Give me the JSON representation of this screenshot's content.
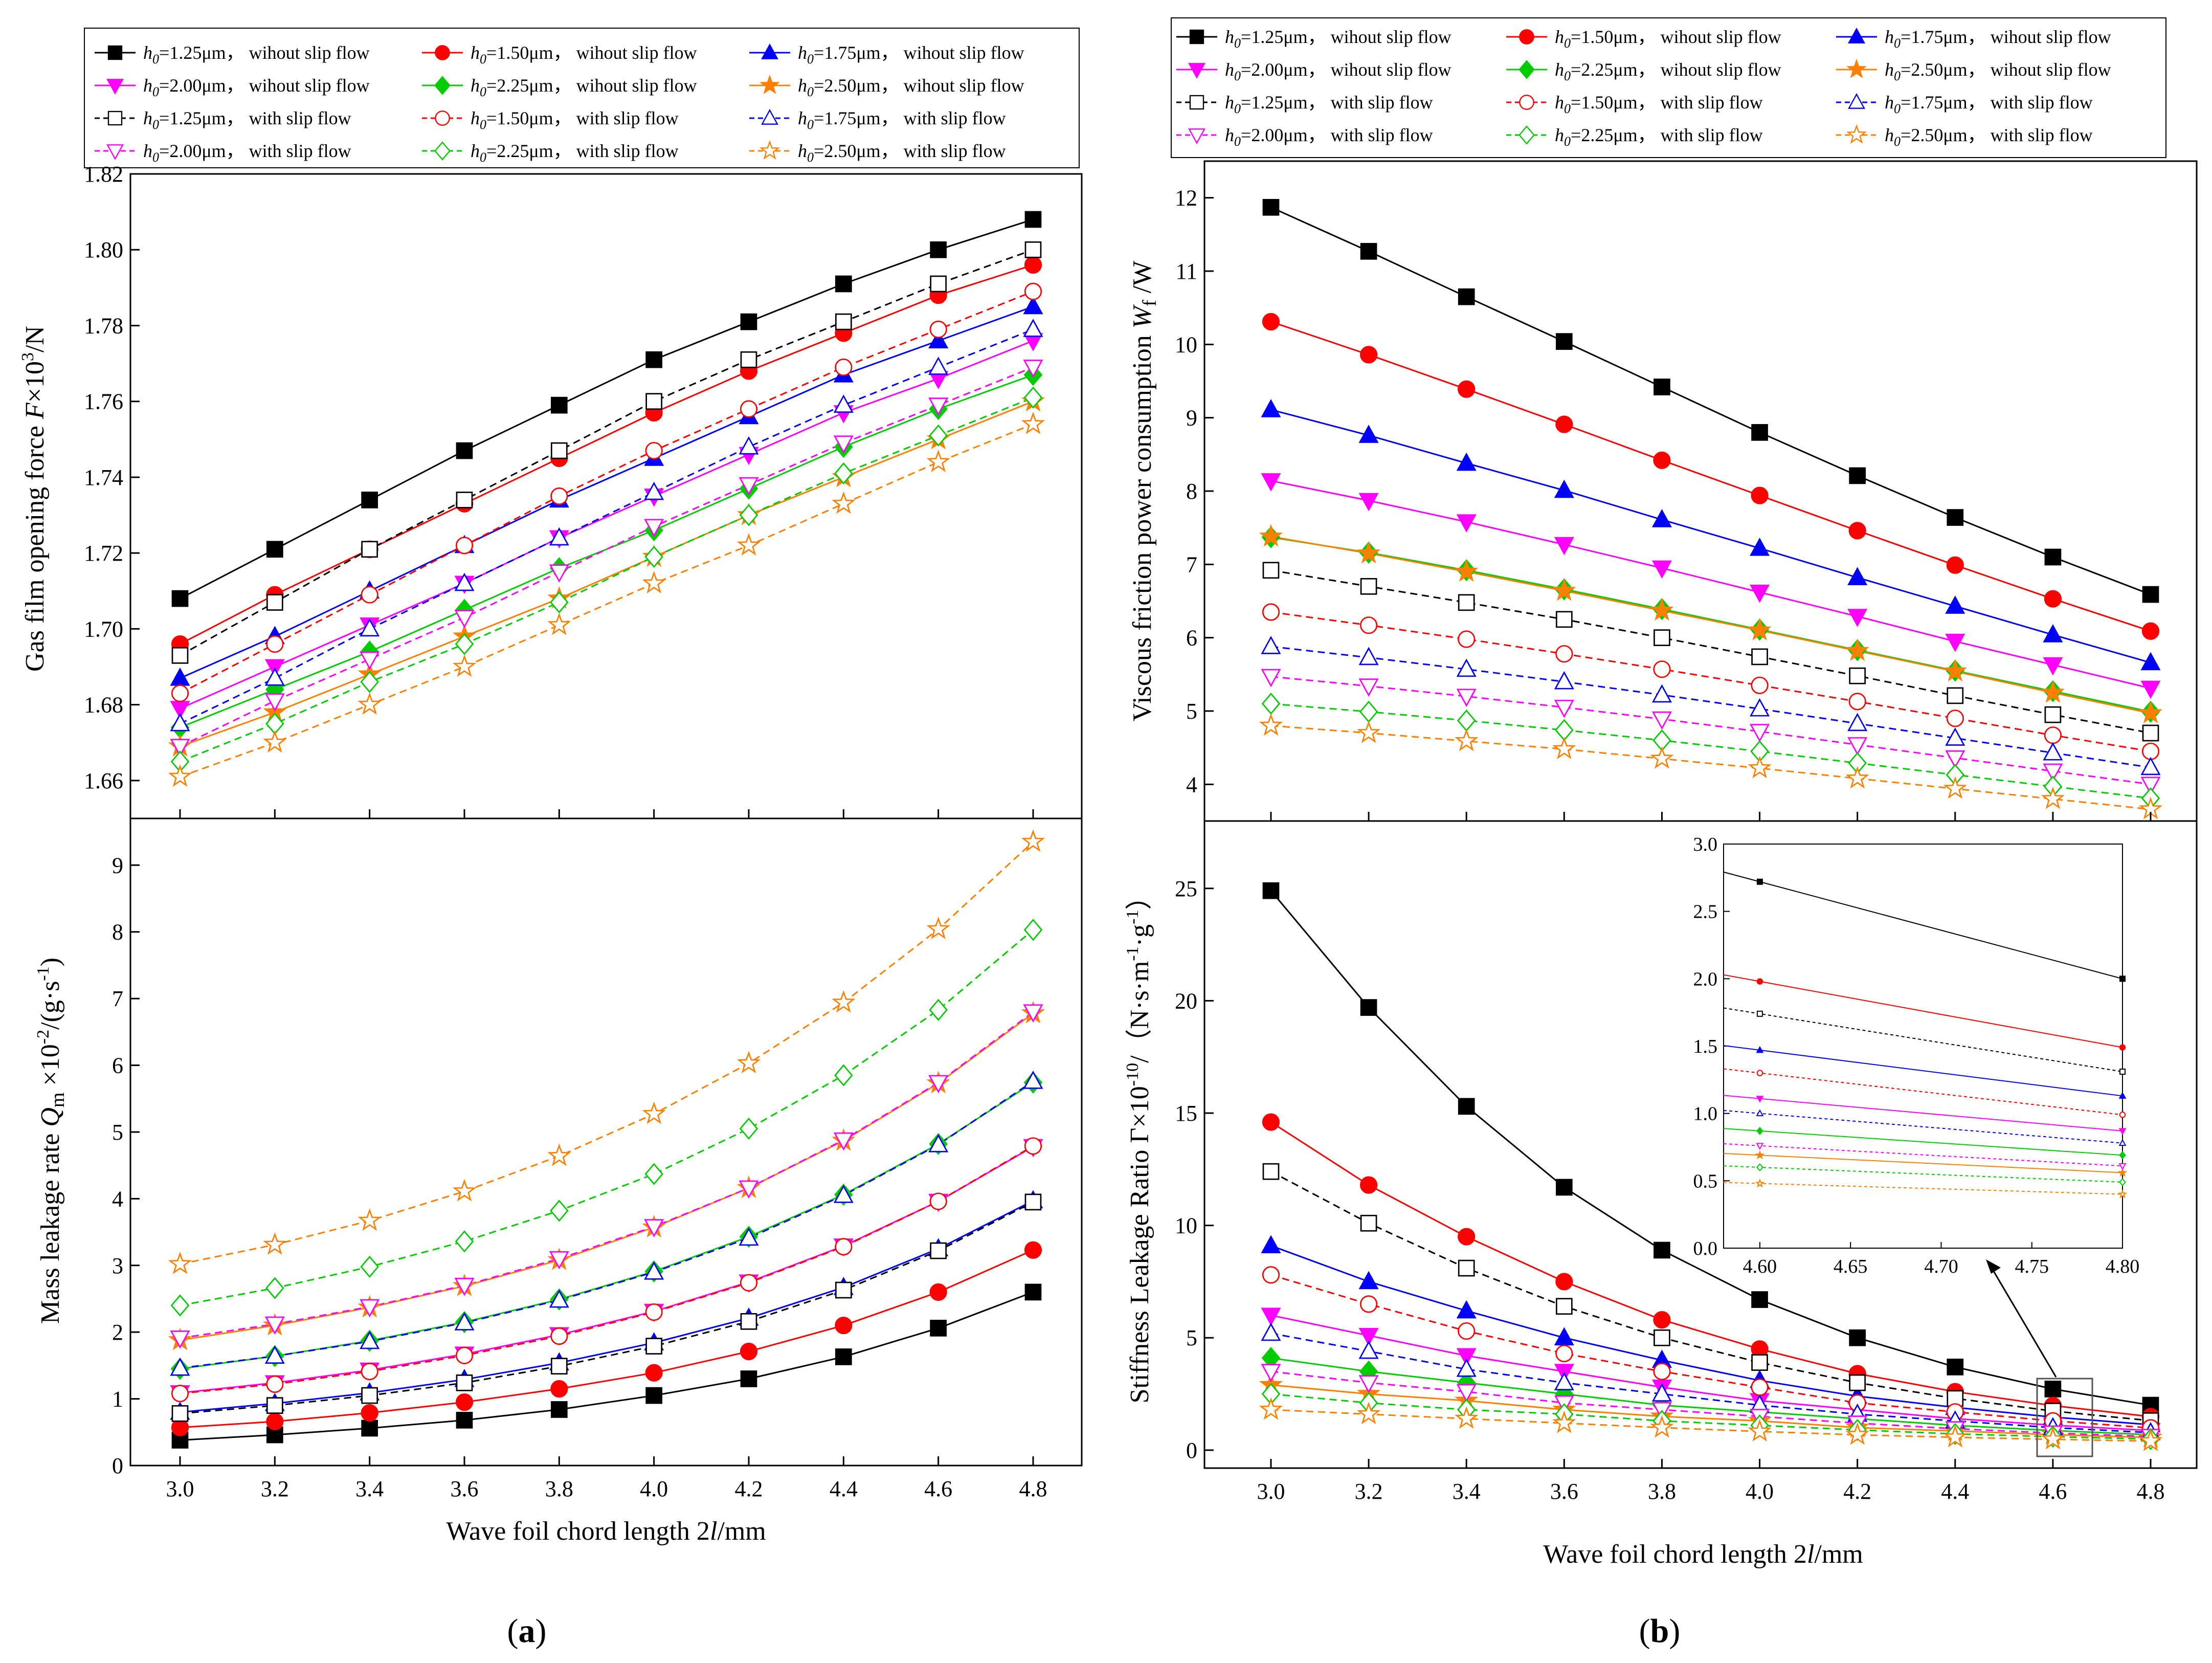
{
  "legend_labels": {
    "wo_125": "1.25μm， wihout slip flow",
    "wo_150": "1.50μm， wihout slip flow",
    "wo_175": "1.75μm， wihout slip flow",
    "wo_200": "2.00μm， wihout slip flow",
    "wo_225": "2.25μm， wihout slip flow",
    "wo_250": "2.50μm， wihout slip flow",
    "w_125": "1.25μm， with slip flow",
    "w_150": "1.50μm， with slip flow",
    "w_175": "1.75μm， with slip flow",
    "w_200": "2.00μm， with slip flow",
    "w_225": "2.25μm， with slip flow",
    "w_250": "2.50μm， with slip flow",
    "h_symbol": "h",
    "h_subscript": "0",
    "eq": "="
  },
  "series_styles": {
    "colors": [
      "#000000",
      "#ff0000",
      "#0000ff",
      "#ff00ff",
      "#00cc00",
      "#ff8000"
    ],
    "markers_without_slip": [
      "square",
      "circle",
      "triangle-up",
      "triangle-down",
      "diamond",
      "star"
    ],
    "markers_with_slip": [
      "open-square",
      "open-circle",
      "open-triangle-up",
      "open-triangle-down",
      "open-diamond",
      "open-star"
    ]
  },
  "axis_labels": {
    "x_a": "Wave foil chord length 2l/mm",
    "x_b": "Wave foil chord length 2l/mm",
    "force": "Gas film opening force F×10³/N",
    "leakage": "Mass leakage rate Qm×10⁻²/(g·s⁻¹)",
    "power": "Viscous friction power consumption Wf /W",
    "ratio": "Stiffness Leakage Ratio Γ×10⁻¹⁰/（N·s·m⁻¹·g⁻¹）"
  },
  "panel_labels": {
    "a": "a",
    "b": "b"
  },
  "chart_data": [
    {
      "id": "opening-force",
      "type": "line",
      "x": [
        3.0,
        3.2,
        3.4,
        3.6,
        3.8,
        4.0,
        4.2,
        4.4,
        4.6,
        4.8
      ],
      "xlim": [
        3.0,
        4.8
      ],
      "ylim": [
        1.65,
        1.82
      ],
      "yticks": [
        1.66,
        1.68,
        1.7,
        1.72,
        1.74,
        1.76,
        1.78,
        1.8,
        1.82
      ],
      "ytick_labels": [
        "1.66",
        "1.68",
        "1.70",
        "1.72",
        "1.74",
        "1.76",
        "1.78",
        "1.80",
        "1.82"
      ],
      "series": [
        {
          "name": "h0=1.25μm, wihout slip flow",
          "values": [
            1.708,
            1.721,
            1.734,
            1.747,
            1.759,
            1.771,
            1.781,
            1.791,
            1.8,
            1.808
          ]
        },
        {
          "name": "h0=1.50μm, wihout slip flow",
          "values": [
            1.696,
            1.709,
            1.721,
            1.733,
            1.745,
            1.757,
            1.768,
            1.778,
            1.788,
            1.796
          ]
        },
        {
          "name": "h0=1.75μm, wihout slip flow",
          "values": [
            1.687,
            1.698,
            1.71,
            1.722,
            1.734,
            1.745,
            1.756,
            1.767,
            1.776,
            1.785
          ]
        },
        {
          "name": "h0=2.00μm, wihout slip flow",
          "values": [
            1.679,
            1.69,
            1.701,
            1.712,
            1.724,
            1.735,
            1.746,
            1.757,
            1.766,
            1.776
          ]
        },
        {
          "name": "h0=2.25μm, wihout slip flow",
          "values": [
            1.674,
            1.684,
            1.694,
            1.705,
            1.716,
            1.726,
            1.737,
            1.748,
            1.758,
            1.767
          ]
        },
        {
          "name": "h0=2.50μm, wihout slip flow",
          "values": [
            1.669,
            1.678,
            1.688,
            1.698,
            1.708,
            1.719,
            1.73,
            1.74,
            1.75,
            1.76
          ]
        },
        {
          "name": "h0=1.25μm, with slip flow",
          "values": [
            1.693,
            1.707,
            1.721,
            1.734,
            1.747,
            1.76,
            1.771,
            1.781,
            1.791,
            1.8
          ]
        },
        {
          "name": "h0=1.50μm, with slip flow",
          "values": [
            1.683,
            1.696,
            1.709,
            1.722,
            1.735,
            1.747,
            1.758,
            1.769,
            1.779,
            1.789
          ]
        },
        {
          "name": "h0=1.75μm, with slip flow",
          "values": [
            1.675,
            1.687,
            1.7,
            1.712,
            1.724,
            1.736,
            1.748,
            1.759,
            1.769,
            1.779
          ]
        },
        {
          "name": "h0=2.00μm, with slip flow",
          "values": [
            1.669,
            1.681,
            1.692,
            1.703,
            1.715,
            1.727,
            1.738,
            1.749,
            1.759,
            1.769
          ]
        },
        {
          "name": "h0=2.25μm, with slip flow",
          "values": [
            1.665,
            1.675,
            1.686,
            1.696,
            1.707,
            1.719,
            1.73,
            1.741,
            1.751,
            1.761
          ]
        },
        {
          "name": "h0=2.50μm, with slip flow",
          "values": [
            1.661,
            1.67,
            1.68,
            1.69,
            1.701,
            1.712,
            1.722,
            1.733,
            1.744,
            1.754
          ]
        }
      ]
    },
    {
      "id": "leakage-rate",
      "type": "line",
      "x": [
        3.0,
        3.2,
        3.4,
        3.6,
        3.8,
        4.0,
        4.2,
        4.4,
        4.6,
        4.8
      ],
      "xlim": [
        3.0,
        4.8
      ],
      "ylim": [
        0,
        9.7
      ],
      "yticks": [
        0,
        1,
        2,
        3,
        4,
        5,
        6,
        7,
        8,
        9
      ],
      "ytick_labels": [
        "0",
        "1",
        "2",
        "3",
        "4",
        "5",
        "6",
        "7",
        "8",
        "9"
      ],
      "series": [
        {
          "name": "h0=1.25μm, wihout slip flow",
          "values": [
            0.38,
            0.46,
            0.56,
            0.68,
            0.84,
            1.05,
            1.3,
            1.63,
            2.06,
            2.6
          ]
        },
        {
          "name": "h0=1.50μm, wihout slip flow",
          "values": [
            0.57,
            0.66,
            0.79,
            0.95,
            1.15,
            1.39,
            1.71,
            2.1,
            2.6,
            3.23
          ]
        },
        {
          "name": "h0=1.75μm, wihout slip flow",
          "values": [
            0.8,
            0.93,
            1.09,
            1.29,
            1.54,
            1.84,
            2.21,
            2.67,
            3.25,
            3.97
          ]
        },
        {
          "name": "h0=2.00μm, wihout slip flow",
          "values": [
            1.09,
            1.24,
            1.43,
            1.67,
            1.96,
            2.31,
            2.75,
            3.29,
            3.96,
            4.78
          ]
        },
        {
          "name": "h0=2.25μm, wihout slip flow",
          "values": [
            1.45,
            1.64,
            1.87,
            2.15,
            2.49,
            2.91,
            3.43,
            4.06,
            4.82,
            5.74
          ]
        },
        {
          "name": "h0=2.50μm, wihout slip flow",
          "values": [
            1.88,
            2.1,
            2.37,
            2.69,
            3.08,
            3.57,
            4.16,
            4.87,
            5.73,
            6.78
          ]
        },
        {
          "name": "h0=1.25μm, with slip flow",
          "values": [
            0.78,
            0.9,
            1.05,
            1.24,
            1.49,
            1.79,
            2.16,
            2.63,
            3.22,
            3.95
          ]
        },
        {
          "name": "h0=1.50μm, with slip flow",
          "values": [
            1.08,
            1.22,
            1.41,
            1.65,
            1.94,
            2.3,
            2.74,
            3.28,
            3.96,
            4.79
          ]
        },
        {
          "name": "h0=1.75μm, with slip flow",
          "values": [
            1.46,
            1.64,
            1.86,
            2.14,
            2.48,
            2.9,
            3.41,
            4.05,
            4.81,
            5.76
          ]
        },
        {
          "name": "h0=2.00μm, with slip flow",
          "values": [
            1.91,
            2.12,
            2.38,
            2.7,
            3.1,
            3.58,
            4.16,
            4.88,
            5.74,
            6.8
          ]
        },
        {
          "name": "h0=2.25μm, with slip flow",
          "values": [
            2.4,
            2.66,
            2.98,
            3.36,
            3.82,
            4.37,
            5.05,
            5.85,
            6.83,
            8.03
          ]
        },
        {
          "name": "h0=2.50μm, with slip flow",
          "values": [
            3.02,
            3.31,
            3.67,
            4.11,
            4.64,
            5.27,
            6.03,
            6.94,
            8.04,
            9.35
          ]
        }
      ]
    },
    {
      "id": "power-consumption",
      "type": "line",
      "x": [
        3.0,
        3.2,
        3.4,
        3.6,
        3.8,
        4.0,
        4.2,
        4.4,
        4.6,
        4.8
      ],
      "xlim": [
        3.0,
        4.8
      ],
      "ylim": [
        3.5,
        12.5
      ],
      "yticks": [
        4,
        5,
        6,
        7,
        8,
        9,
        10,
        11,
        12
      ],
      "ytick_labels": [
        "4",
        "5",
        "6",
        "7",
        "8",
        "9",
        "10",
        "11",
        "12"
      ],
      "series": [
        {
          "name": "h0=1.25μm, wihout slip flow",
          "values": [
            11.87,
            11.27,
            10.65,
            10.04,
            9.42,
            8.8,
            8.21,
            7.64,
            7.1,
            6.59
          ]
        },
        {
          "name": "h0=1.50μm, wihout slip flow",
          "values": [
            10.31,
            9.86,
            9.39,
            8.91,
            8.42,
            7.94,
            7.46,
            6.99,
            6.53,
            6.09
          ]
        },
        {
          "name": "h0=1.75μm, wihout slip flow",
          "values": [
            9.11,
            8.76,
            8.38,
            8.01,
            7.61,
            7.22,
            6.82,
            6.43,
            6.04,
            5.66
          ]
        },
        {
          "name": "h0=2.00μm, wihout slip flow",
          "values": [
            8.14,
            7.87,
            7.58,
            7.27,
            6.95,
            6.62,
            6.29,
            5.95,
            5.63,
            5.31
          ]
        },
        {
          "name": "h0=2.25μm, wihout slip flow",
          "values": [
            7.37,
            7.16,
            6.92,
            6.66,
            6.39,
            6.11,
            5.83,
            5.55,
            5.27,
            4.99
          ]
        },
        {
          "name": "h0=2.50μm, wihout slip flow",
          "values": [
            7.38,
            7.15,
            6.9,
            6.64,
            6.37,
            6.1,
            5.82,
            5.54,
            5.25,
            4.97
          ]
        },
        {
          "name": "h0=1.25μm, with slip flow",
          "values": [
            6.92,
            6.7,
            6.48,
            6.25,
            6.0,
            5.74,
            5.48,
            5.21,
            4.95,
            4.7
          ]
        },
        {
          "name": "h0=1.50μm, with slip flow",
          "values": [
            6.35,
            6.17,
            5.98,
            5.78,
            5.57,
            5.35,
            5.13,
            4.9,
            4.67,
            4.45
          ]
        },
        {
          "name": "h0=1.75μm, with slip flow",
          "values": [
            5.88,
            5.73,
            5.57,
            5.4,
            5.22,
            5.03,
            4.83,
            4.63,
            4.43,
            4.23
          ]
        },
        {
          "name": "h0=2.00μm, with slip flow",
          "values": [
            5.47,
            5.34,
            5.2,
            5.05,
            4.89,
            4.72,
            4.54,
            4.36,
            4.18,
            4.0
          ]
        },
        {
          "name": "h0=2.25μm, with slip flow",
          "values": [
            5.1,
            4.99,
            4.87,
            4.74,
            4.6,
            4.45,
            4.29,
            4.13,
            3.97,
            3.81
          ]
        },
        {
          "name": "h0=2.50μm, with slip flow",
          "values": [
            4.8,
            4.7,
            4.59,
            4.48,
            4.35,
            4.22,
            4.08,
            3.94,
            3.8,
            3.66
          ]
        }
      ]
    },
    {
      "id": "stiffness-leakage-ratio",
      "type": "line",
      "x": [
        3.0,
        3.2,
        3.4,
        3.6,
        3.8,
        4.0,
        4.2,
        4.4,
        4.6,
        4.8
      ],
      "xlim": [
        3.0,
        4.8
      ],
      "ylim": [
        -0.8,
        28
      ],
      "yticks": [
        0,
        5,
        10,
        15,
        20,
        25
      ],
      "ytick_labels": [
        "0",
        "5",
        "10",
        "15",
        "20",
        "25"
      ],
      "series": [
        {
          "name": "h0=1.25μm, wihout slip flow",
          "values": [
            24.9,
            19.7,
            15.3,
            11.7,
            8.9,
            6.7,
            5.0,
            3.7,
            2.72,
            2.0
          ]
        },
        {
          "name": "h0=1.50μm, wihout slip flow",
          "values": [
            14.6,
            11.8,
            9.5,
            7.5,
            5.8,
            4.5,
            3.4,
            2.6,
            1.98,
            1.49
          ]
        },
        {
          "name": "h0=1.75μm, wihout slip flow",
          "values": [
            9.1,
            7.5,
            6.2,
            5.0,
            4.0,
            3.1,
            2.4,
            1.9,
            1.47,
            1.13
          ]
        },
        {
          "name": "h0=2.00μm, wihout slip flow",
          "values": [
            6.0,
            5.1,
            4.2,
            3.5,
            2.8,
            2.2,
            1.8,
            1.4,
            1.11,
            0.87
          ]
        },
        {
          "name": "h0=2.25μm, wihout slip flow",
          "values": [
            4.1,
            3.5,
            3.0,
            2.5,
            2.0,
            1.7,
            1.4,
            1.1,
            0.87,
            0.69
          ]
        },
        {
          "name": "h0=2.50μm, wihout slip flow",
          "values": [
            2.9,
            2.5,
            2.2,
            1.8,
            1.5,
            1.3,
            1.0,
            0.85,
            0.69,
            0.56
          ]
        },
        {
          "name": "h0=1.25μm, with slip flow",
          "values": [
            12.4,
            10.1,
            8.1,
            6.4,
            5.0,
            3.9,
            3.0,
            2.3,
            1.74,
            1.31
          ]
        },
        {
          "name": "h0=1.50μm, with slip flow",
          "values": [
            7.8,
            6.5,
            5.3,
            4.3,
            3.5,
            2.8,
            2.1,
            1.7,
            1.3,
            0.99
          ]
        },
        {
          "name": "h0=1.75μm, with slip flow",
          "values": [
            5.2,
            4.4,
            3.6,
            3.0,
            2.5,
            2.0,
            1.6,
            1.3,
            1.0,
            0.78
          ]
        },
        {
          "name": "h0=2.00μm, with slip flow",
          "values": [
            3.5,
            3.0,
            2.6,
            2.1,
            1.8,
            1.5,
            1.2,
            0.95,
            0.76,
            0.61
          ]
        },
        {
          "name": "h0=2.25μm, with slip flow",
          "values": [
            2.5,
            2.1,
            1.8,
            1.6,
            1.3,
            1.1,
            0.9,
            0.72,
            0.6,
            0.49
          ]
        },
        {
          "name": "h0=2.50μm, with slip flow",
          "values": [
            1.8,
            1.6,
            1.4,
            1.2,
            1.0,
            0.83,
            0.68,
            0.57,
            0.48,
            0.4
          ]
        }
      ],
      "inset": {
        "x": [
          4.6,
          4.8
        ],
        "xlim": [
          4.58,
          4.8
        ],
        "ylim": [
          0,
          3.0
        ],
        "xticks": [
          4.6,
          4.65,
          4.7,
          4.75,
          4.8
        ],
        "xtick_labels": [
          "4.60",
          "4.65",
          "4.70",
          "4.75",
          "4.80"
        ],
        "yticks": [
          0.0,
          0.5,
          1.0,
          1.5,
          2.0,
          2.5,
          3.0
        ],
        "ytick_labels": [
          "0.0",
          "0.5",
          "1.0",
          "1.5",
          "2.0",
          "2.5",
          "3.0"
        ]
      }
    }
  ]
}
